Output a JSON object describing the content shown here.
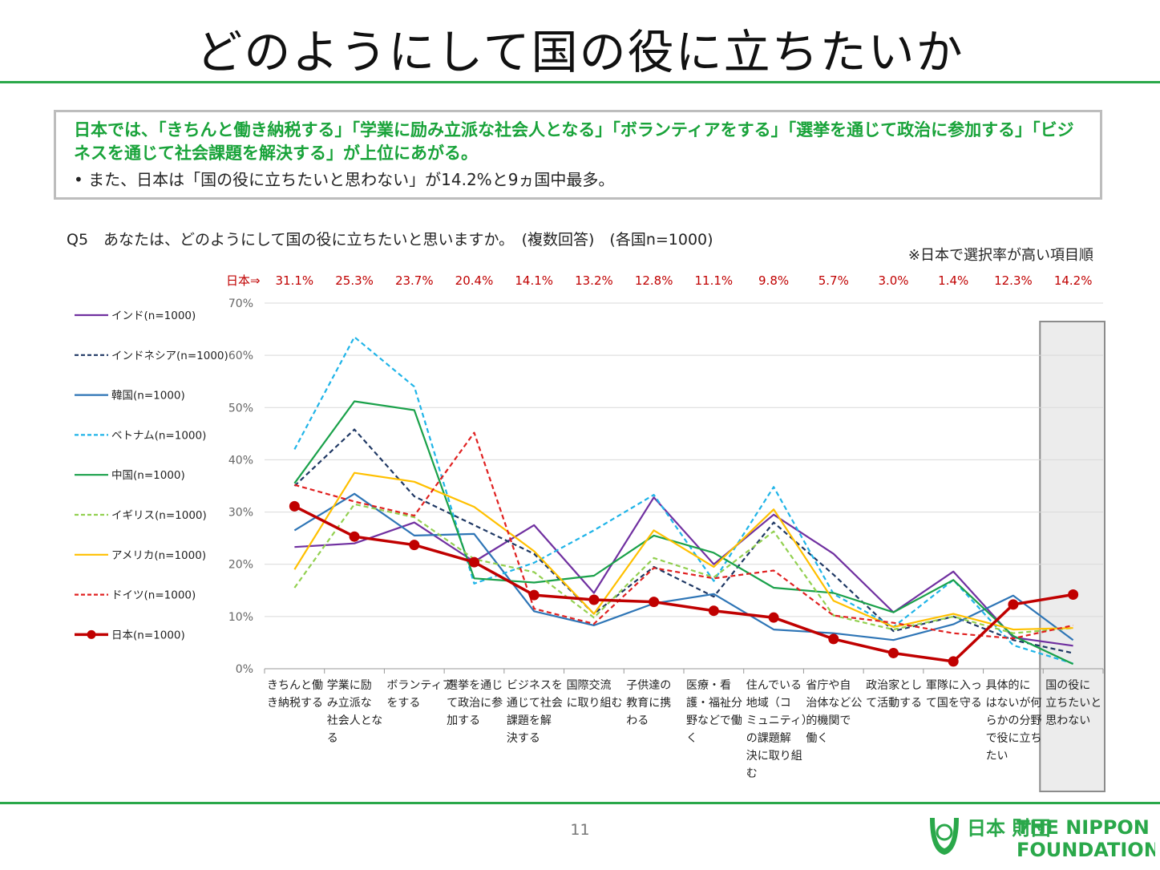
{
  "page": {
    "title": "どのようにして国の役に立ちたいか",
    "summary_highlight": "日本では、「きちんと働き納税する」「学業に励み立派な社会人となる」「ボランティアをする」「選挙を通じて政治に参加する」「ビジネスを通じて社会課題を解決する」が上位にあがる。",
    "summary_bullet": "•  また、日本は「国の役に立ちたいと思わない」が14.2%と9ヵ国中最多。",
    "question": "Q5　あなたは、どのようにして国の役に立ちたいと思いますか。　(複数回答)　(各国n=1000)",
    "sort_note": "※日本で選択率が高い項目順",
    "page_number": "11",
    "logo": {
      "jp": "日本 財団",
      "en_line1": "THE NIPPON",
      "en_line2": "FOUNDATION"
    }
  },
  "chart_data": {
    "type": "line",
    "japan_row_label": "日本⇒",
    "japan_row_values": [
      "31.1%",
      "25.3%",
      "23.7%",
      "20.4%",
      "14.1%",
      "13.2%",
      "12.8%",
      "11.1%",
      "9.8%",
      "5.7%",
      "3.0%",
      "1.4%",
      "12.3%",
      "14.2%"
    ],
    "categories": [
      "きちんと働き納税する",
      "学業に励み立派な社会人となる",
      "ボランティアをする",
      "選挙を通じて政治に参加する",
      "ビジネスを通じて社会課題を解決する",
      "国際交流に取り組む",
      "子供達の教育に携わる",
      "医療・看護・福祉分野などで働く",
      "住んでいる地域（コミュニティ）の課題解決に取り組む",
      "省庁や自治体など公的機関で働く",
      "政治家として活動する",
      "軍隊に入って国を守る",
      "具体的にはないが何らかの分野で役に立ちたい",
      "国の役に立ちたいと思わない"
    ],
    "category_lines": [
      [
        "きちんと働",
        "き納税する"
      ],
      [
        "学業に励",
        "み立派な",
        "社会人とな",
        "る"
      ],
      [
        "ボランティア",
        "をする"
      ],
      [
        "選挙を通じ",
        "て政治に参",
        "加する"
      ],
      [
        "ビジネスを",
        "通じて社会",
        "課題を解",
        "決する"
      ],
      [
        "国際交流",
        "に取り組む"
      ],
      [
        "子供達の",
        "教育に携",
        "わる"
      ],
      [
        "医療・看",
        "護・福祉分",
        "野などで働",
        "く"
      ],
      [
        "住んでいる",
        "地域（コ",
        "ミュニティ）",
        "の課題解",
        "決に取り組",
        "む"
      ],
      [
        "省庁や自",
        "治体など公",
        "的機関で",
        "働く"
      ],
      [
        "政治家とし",
        "て活動する"
      ],
      [
        "軍隊に入っ",
        "て国を守る"
      ],
      [
        "具体的に",
        "はないが何",
        "らかの分野",
        "で役に立ち",
        "たい"
      ],
      [
        "国の役に",
        "立ちたいと",
        "思わない"
      ]
    ],
    "y_ticks": [
      "0%",
      "10%",
      "20%",
      "30%",
      "40%",
      "50%",
      "60%",
      "70%"
    ],
    "ylim": [
      0,
      70
    ],
    "grid": true,
    "legend_position": "left",
    "series": [
      {
        "name": "インド(n=1000)",
        "color": "#7030a0",
        "dash": false,
        "marker": false,
        "values": [
          23.3,
          24.0,
          28.0,
          20.5,
          27.5,
          14.5,
          32.8,
          20.0,
          29.5,
          22.0,
          10.8,
          18.6,
          6.0,
          4.4
        ]
      },
      {
        "name": "インドネシア(n=1000)",
        "color": "#1f3864",
        "dash": true,
        "marker": false,
        "values": [
          35.0,
          45.8,
          33.0,
          27.5,
          22.0,
          10.5,
          19.5,
          13.8,
          28.0,
          18.0,
          7.2,
          10.0,
          5.5,
          3.0
        ]
      },
      {
        "name": "韓国(n=1000)",
        "color": "#2e75b6",
        "dash": false,
        "marker": false,
        "values": [
          26.5,
          33.5,
          25.5,
          25.8,
          11.0,
          8.3,
          12.5,
          14.3,
          7.5,
          6.8,
          5.5,
          8.5,
          14.0,
          5.5
        ]
      },
      {
        "name": "ベトナム(n=1000)",
        "color": "#1fb4e8",
        "dash": true,
        "marker": false,
        "values": [
          42.0,
          63.5,
          54.0,
          16.3,
          20.3,
          26.5,
          33.3,
          16.8,
          34.8,
          14.3,
          8.0,
          17.0,
          4.5,
          1.0
        ]
      },
      {
        "name": "中国(n=1000)",
        "color": "#1aa14a",
        "dash": false,
        "marker": false,
        "values": [
          35.5,
          51.2,
          49.5,
          17.3,
          16.5,
          17.8,
          25.5,
          22.2,
          15.5,
          14.5,
          10.8,
          17.0,
          6.3,
          0.9
        ]
      },
      {
        "name": "イギリス(n=1000)",
        "color": "#92d050",
        "dash": true,
        "marker": false,
        "values": [
          15.5,
          31.5,
          29.0,
          21.0,
          18.5,
          9.8,
          21.2,
          17.5,
          26.3,
          10.2,
          7.5,
          10.0,
          6.8,
          7.8
        ]
      },
      {
        "name": "アメリカ(n=1000)",
        "color": "#ffc000",
        "dash": false,
        "marker": false,
        "values": [
          19.0,
          37.5,
          35.8,
          31.0,
          22.5,
          10.5,
          26.5,
          19.5,
          30.5,
          13.0,
          8.0,
          10.5,
          7.5,
          7.8
        ]
      },
      {
        "name": "ドイツ(n=1000)",
        "color": "#e02020",
        "dash": true,
        "marker": false,
        "values": [
          35.2,
          32.0,
          29.3,
          45.2,
          11.5,
          8.6,
          19.3,
          17.3,
          18.8,
          10.2,
          8.8,
          6.8,
          5.8,
          8.3
        ]
      },
      {
        "name": "日本(n=1000)",
        "color": "#c00000",
        "dash": false,
        "marker": true,
        "values": [
          31.1,
          25.3,
          23.7,
          20.4,
          14.1,
          13.2,
          12.8,
          11.1,
          9.8,
          5.7,
          3.0,
          1.4,
          12.3,
          14.2
        ]
      }
    ]
  }
}
